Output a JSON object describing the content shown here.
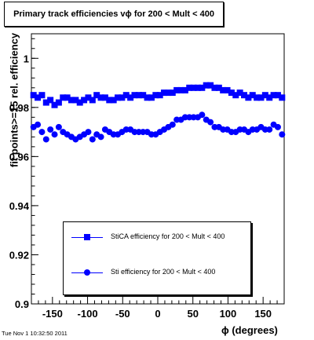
{
  "chart_data": {
    "type": "scatter",
    "title": "Primary track efficiencies vϕ for 200 < Mult < 400",
    "xlabel": "ϕ (degrees)",
    "ylabel": "fit points>=15 rel. efficiency",
    "xlim": [
      -180,
      180
    ],
    "ylim": [
      0.9,
      1.01
    ],
    "x_ticks": [
      -150,
      -100,
      -50,
      0,
      50,
      100,
      150
    ],
    "y_ticks": [
      0.9,
      0.92,
      0.94,
      0.96,
      0.98,
      1
    ],
    "x_tick_labels": [
      "-150",
      "-100",
      "-50",
      "0",
      "50",
      "100",
      "150"
    ],
    "y_tick_labels": [
      "0.9",
      "0.92",
      "0.94",
      "0.96",
      "0.98",
      "1"
    ],
    "grid": false,
    "legend_position": "bottom-center",
    "series": [
      {
        "name": "StiCA efficiency  for 200 < Mult < 400",
        "marker": "square",
        "color": "#0000ff",
        "x": [
          -177,
          -171,
          -165,
          -159,
          -153,
          -147,
          -141,
          -135,
          -129,
          -123,
          -117,
          -111,
          -105,
          -99,
          -93,
          -87,
          -81,
          -75,
          -69,
          -63,
          -57,
          -51,
          -45,
          -39,
          -33,
          -27,
          -21,
          -15,
          -9,
          -3,
          3,
          9,
          15,
          21,
          27,
          33,
          39,
          45,
          51,
          57,
          63,
          69,
          75,
          81,
          87,
          93,
          99,
          105,
          111,
          117,
          123,
          129,
          135,
          141,
          147,
          153,
          159,
          165,
          171,
          177
        ],
        "y": [
          0.985,
          0.984,
          0.985,
          0.982,
          0.983,
          0.981,
          0.982,
          0.984,
          0.984,
          0.983,
          0.983,
          0.982,
          0.983,
          0.984,
          0.983,
          0.985,
          0.984,
          0.984,
          0.983,
          0.983,
          0.984,
          0.984,
          0.985,
          0.984,
          0.985,
          0.985,
          0.985,
          0.984,
          0.984,
          0.985,
          0.985,
          0.986,
          0.986,
          0.986,
          0.987,
          0.987,
          0.987,
          0.988,
          0.988,
          0.988,
          0.988,
          0.989,
          0.989,
          0.988,
          0.988,
          0.987,
          0.987,
          0.986,
          0.985,
          0.986,
          0.985,
          0.984,
          0.985,
          0.984,
          0.984,
          0.985,
          0.984,
          0.985,
          0.985,
          0.984
        ]
      },
      {
        "name": "Sti efficiency  for 200 < Mult < 400",
        "marker": "circle",
        "color": "#0000ff",
        "x": [
          -177,
          -171,
          -165,
          -159,
          -153,
          -147,
          -141,
          -135,
          -129,
          -123,
          -117,
          -111,
          -105,
          -99,
          -93,
          -87,
          -81,
          -75,
          -69,
          -63,
          -57,
          -51,
          -45,
          -39,
          -33,
          -27,
          -21,
          -15,
          -9,
          -3,
          3,
          9,
          15,
          21,
          27,
          33,
          39,
          45,
          51,
          57,
          63,
          69,
          75,
          81,
          87,
          93,
          99,
          105,
          111,
          117,
          123,
          129,
          135,
          141,
          147,
          153,
          159,
          165,
          171,
          177
        ],
        "y": [
          0.972,
          0.973,
          0.97,
          0.967,
          0.971,
          0.969,
          0.972,
          0.97,
          0.969,
          0.968,
          0.967,
          0.968,
          0.969,
          0.97,
          0.967,
          0.969,
          0.968,
          0.971,
          0.97,
          0.969,
          0.969,
          0.97,
          0.971,
          0.971,
          0.97,
          0.97,
          0.97,
          0.97,
          0.969,
          0.969,
          0.97,
          0.971,
          0.972,
          0.973,
          0.975,
          0.975,
          0.976,
          0.976,
          0.976,
          0.976,
          0.977,
          0.975,
          0.974,
          0.972,
          0.972,
          0.971,
          0.971,
          0.97,
          0.97,
          0.971,
          0.971,
          0.97,
          0.971,
          0.971,
          0.972,
          0.971,
          0.971,
          0.973,
          0.972,
          0.969
        ]
      }
    ]
  },
  "footer": {
    "timestamp": "Tue Nov  1 10:32:50 2011"
  }
}
